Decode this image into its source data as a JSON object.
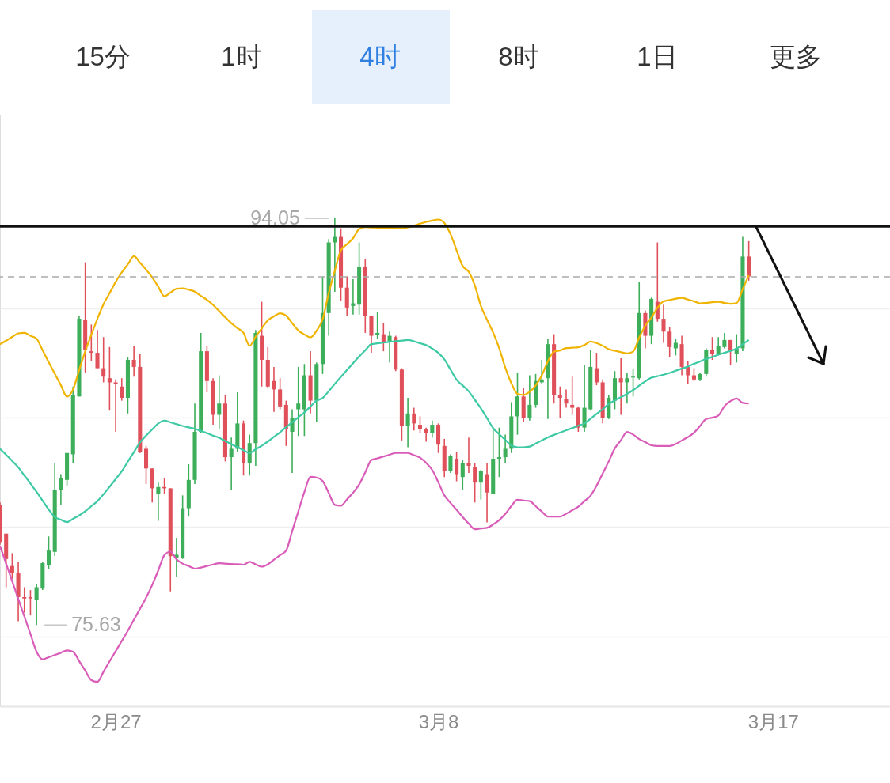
{
  "chart_data": {
    "type": "candlestick",
    "annotations": [
      "15分",
      "1时",
      "4时",
      "8时",
      "1日",
      "更多",
      "94.05",
      "75.63"
    ],
    "categories": [
      null,
      null,
      null,
      null,
      null,
      null,
      null,
      null,
      null,
      null,
      null,
      null,
      null,
      null,
      null,
      null,
      null,
      null,
      null,
      "2月27",
      null,
      null,
      null,
      null,
      null,
      null,
      null,
      null,
      null,
      null,
      null,
      null,
      null,
      null,
      null,
      null,
      null,
      null,
      null,
      null,
      null,
      null,
      null,
      null,
      null,
      null,
      null,
      null,
      null,
      null,
      null,
      null,
      null,
      null,
      null,
      null,
      null,
      null,
      null,
      null,
      null,
      null,
      null,
      null,
      null,
      null,
      null,
      null,
      null,
      null,
      null,
      null,
      "3月8",
      null,
      null,
      null,
      null,
      null,
      null,
      null,
      null,
      null,
      null,
      null,
      null,
      null,
      null,
      null,
      null,
      null,
      null,
      null,
      null,
      null,
      null,
      null,
      null,
      null,
      null,
      null,
      null,
      null,
      null,
      null,
      null,
      null,
      null,
      null,
      null,
      null,
      null,
      null,
      null,
      null,
      null,
      null,
      null,
      null,
      null,
      null,
      null,
      null,
      null,
      null,
      null,
      null,
      null,
      "3月17",
      null,
      null,
      null,
      null,
      null,
      null,
      null,
      null,
      null,
      null,
      null,
      null,
      null,
      null,
      null,
      null,
      null,
      null,
      null
    ],
    "ohlc": [
      [
        81.05,
        81.18,
        79.26,
        79.39
      ],
      [
        79.77,
        79.77,
        77.34,
        78.62
      ],
      [
        78.3,
        78.88,
        77.72,
        77.98
      ],
      [
        77.98,
        78.49,
        75.8,
        76.89
      ],
      [
        76.89,
        77.34,
        76.19,
        76.83
      ],
      [
        76.89,
        77.21,
        76.06,
        76.83
      ],
      [
        76.76,
        77.47,
        75.63,
        77.34
      ],
      [
        77.28,
        78.49,
        77.21,
        78.43
      ],
      [
        78.36,
        79.64,
        78.17,
        79.0
      ],
      [
        78.94,
        82.97,
        78.75,
        81.76
      ],
      [
        81.76,
        82.46,
        81.05,
        82.27
      ],
      [
        82.2,
        83.42,
        81.95,
        83.42
      ],
      [
        83.36,
        86.43,
        82.97,
        86.04
      ],
      [
        85.98,
        89.63,
        85.98,
        89.5
      ],
      [
        89.44,
        92.06,
        87.07,
        88.09
      ],
      [
        88.03,
        89.24,
        87.58,
        87.96
      ],
      [
        87.96,
        88.99,
        87.26,
        87.26
      ],
      [
        87.26,
        88.67,
        86.62,
        86.88
      ],
      [
        86.81,
        88.22,
        85.34,
        86.62
      ],
      [
        86.62,
        86.75,
        84.38,
        86.56
      ],
      [
        86.43,
        86.81,
        85.79,
        85.92
      ],
      [
        85.92,
        87.77,
        85.21,
        87.64
      ],
      [
        87.64,
        88.28,
        86.88,
        87.32
      ],
      [
        87.32,
        87.9,
        83.42,
        83.48
      ],
      [
        83.61,
        83.74,
        82.01,
        82.72
      ],
      [
        82.72,
        82.72,
        81.18,
        81.82
      ],
      [
        81.56,
        82.08,
        80.35,
        81.88
      ],
      [
        81.88,
        82.27,
        81.56,
        81.82
      ],
      [
        81.82,
        81.82,
        77.15,
        78.75
      ],
      [
        78.68,
        79.58,
        77.79,
        78.81
      ],
      [
        78.68,
        81.5,
        78.62,
        80.92
      ],
      [
        80.92,
        82.91,
        80.54,
        82.2
      ],
      [
        82.2,
        85.66,
        82.01,
        84.38
      ],
      [
        84.38,
        88.86,
        84.32,
        88.03
      ],
      [
        88.03,
        88.28,
        86.17,
        86.68
      ],
      [
        86.68,
        86.81,
        84.7,
        85.15
      ],
      [
        85.15,
        86.94,
        84.51,
        85.66
      ],
      [
        85.66,
        86.04,
        83.04,
        83.23
      ],
      [
        83.23,
        84.12,
        81.76,
        83.61
      ],
      [
        83.61,
        86.17,
        83.48,
        84.76
      ],
      [
        84.76,
        84.89,
        82.4,
        82.97
      ],
      [
        82.97,
        84.25,
        82.4,
        83.87
      ],
      [
        83.87,
        88.99,
        82.84,
        88.86
      ],
      [
        88.73,
        90.27,
        86.43,
        87.64
      ],
      [
        87.64,
        88.22,
        86.36,
        86.43
      ],
      [
        86.68,
        87.32,
        85.28,
        86.3
      ],
      [
        86.3,
        86.81,
        85.4,
        85.53
      ],
      [
        85.6,
        85.79,
        83.74,
        84.51
      ],
      [
        84.38,
        85.4,
        82.52,
        85.02
      ],
      [
        85.4,
        87.32,
        84.19,
        85.66
      ],
      [
        85.4,
        87.45,
        84.19,
        86.94
      ],
      [
        86.94,
        88.03,
        85.21,
        85.79
      ],
      [
        85.79,
        87.52,
        84.83,
        87.45
      ],
      [
        87.45,
        91.42,
        87.0,
        89.76
      ],
      [
        89.76,
        93.11,
        88.73,
        92.96
      ],
      [
        92.96,
        94.05,
        90.72,
        93.21
      ],
      [
        93.21,
        93.6,
        90.33,
        90.91
      ],
      [
        90.91,
        91.42,
        89.63,
        90.01
      ],
      [
        90.08,
        91.29,
        89.69,
        90.2
      ],
      [
        90.14,
        92.96,
        89.69,
        91.87
      ],
      [
        91.87,
        92.19,
        88.86,
        89.63
      ],
      [
        89.63,
        89.63,
        87.96,
        88.73
      ],
      [
        88.76,
        89.82,
        88.6,
        88.86
      ],
      [
        88.8,
        89.31,
        88.03,
        88.41
      ],
      [
        88.48,
        88.92,
        87.52,
        88.73
      ],
      [
        88.67,
        88.73,
        87.13,
        87.2
      ],
      [
        87.2,
        87.26,
        83.99,
        84.64
      ],
      [
        84.64,
        85.92,
        83.68,
        85.21
      ],
      [
        85.21,
        85.47,
        84.44,
        84.76
      ],
      [
        84.7,
        85.08,
        84.32,
        84.51
      ],
      [
        84.51,
        84.57,
        83.93,
        84.32
      ],
      [
        84.32,
        84.89,
        84.12,
        84.7
      ],
      [
        84.7,
        84.76,
        83.42,
        83.8
      ],
      [
        83.74,
        84.06,
        82.33,
        82.59
      ],
      [
        82.59,
        83.36,
        82.52,
        83.29
      ],
      [
        83.16,
        83.48,
        82.14,
        82.46
      ],
      [
        82.33,
        83.1,
        81.76,
        82.97
      ],
      [
        82.97,
        84.12,
        82.52,
        82.84
      ],
      [
        82.78,
        82.97,
        81.18,
        82.08
      ],
      [
        82.08,
        82.65,
        81.31,
        82.59
      ],
      [
        82.46,
        82.97,
        80.28,
        81.63
      ],
      [
        81.56,
        84.51,
        81.56,
        83.16
      ],
      [
        83.16,
        84.57,
        82.33,
        83.23
      ],
      [
        83.23,
        84.25,
        82.97,
        83.61
      ],
      [
        83.61,
        85.72,
        83.42,
        85.08
      ],
      [
        85.08,
        87.07,
        84.25,
        85.98
      ],
      [
        85.98,
        86.36,
        84.83,
        85.02
      ],
      [
        85.02,
        86.94,
        84.89,
        85.6
      ],
      [
        85.6,
        87.0,
        85.47,
        86.68
      ],
      [
        86.62,
        87.64,
        86.56,
        86.75
      ],
      [
        86.81,
        88.6,
        84.96,
        88.35
      ],
      [
        88.35,
        88.8,
        85.66,
        86.04
      ],
      [
        86.04,
        86.43,
        85.02,
        85.92
      ],
      [
        85.85,
        86.3,
        85.47,
        85.66
      ],
      [
        85.6,
        86.88,
        85.15,
        85.47
      ],
      [
        85.47,
        85.53,
        84.38,
        84.57
      ],
      [
        84.57,
        87.39,
        84.38,
        85.47
      ],
      [
        85.4,
        88.09,
        85.34,
        87.32
      ],
      [
        87.26,
        87.96,
        86.49,
        86.62
      ],
      [
        86.62,
        86.75,
        84.76,
        85.02
      ],
      [
        85.02,
        86.04,
        84.96,
        85.92
      ],
      [
        85.79,
        87.13,
        85.4,
        86.81
      ],
      [
        86.81,
        87.71,
        85.15,
        86.62
      ],
      [
        86.62,
        87.07,
        85.66,
        86.81
      ],
      [
        86.84,
        87.22,
        85.98,
        86.88
      ],
      [
        86.81,
        91.16,
        86.75,
        89.76
      ],
      [
        89.76,
        89.88,
        88.16,
        88.73
      ],
      [
        88.73,
        90.46,
        88.35,
        90.4
      ],
      [
        90.27,
        92.96,
        89.37,
        89.5
      ],
      [
        89.5,
        90.14,
        88.41,
        88.92
      ],
      [
        88.92,
        89.12,
        87.77,
        88.22
      ],
      [
        88.16,
        88.6,
        87.84,
        88.41
      ],
      [
        88.35,
        88.73,
        86.94,
        87.32
      ],
      [
        87.32,
        87.58,
        86.56,
        86.94
      ],
      [
        86.94,
        87.26,
        86.68,
        86.75
      ],
      [
        86.75,
        87.07,
        86.68,
        87.0
      ],
      [
        87.0,
        88.16,
        86.88,
        88.09
      ],
      [
        88.09,
        88.67,
        87.64,
        87.9
      ],
      [
        87.9,
        88.67,
        87.84,
        88.28
      ],
      [
        88.22,
        88.86,
        88.16,
        88.54
      ],
      [
        88.54,
        88.54,
        87.39,
        88.03
      ],
      [
        87.9,
        88.8,
        87.52,
        88.16
      ],
      [
        88.16,
        93.21,
        88.03,
        92.32
      ],
      [
        92.32,
        93.02,
        91.23,
        91.42
      ],
      null,
      null,
      null,
      null,
      null,
      null,
      null,
      null,
      null,
      null,
      null,
      null,
      null,
      null,
      null,
      null,
      null,
      null,
      null,
      null,
      null,
      null,
      null
    ],
    "colors": [
      "#e0505a",
      "#e0505a",
      "#e0505a",
      "#e0505a",
      "#e0505a",
      "#e0505a",
      "#3dae5a",
      "#3dae5a",
      "#3dae5a",
      "#3dae5a",
      "#3dae5a",
      "#3dae5a",
      "#3dae5a",
      "#3dae5a",
      "#e0505a",
      "#e0505a",
      "#e0505a",
      "#e0505a",
      "#e0505a",
      "#e0505a",
      "#e0505a",
      "#3dae5a",
      "#e0505a",
      "#e0505a",
      "#e0505a",
      "#e0505a",
      "#3dae5a",
      "#e0505a",
      "#e0505a",
      "#3dae5a",
      "#3dae5a",
      "#3dae5a",
      "#3dae5a",
      "#3dae5a",
      "#e0505a",
      "#e0505a",
      "#3dae5a",
      "#e0505a",
      "#3dae5a",
      "#3dae5a",
      "#e0505a",
      "#3dae5a",
      "#3dae5a",
      "#e0505a",
      "#e0505a",
      "#e0505a",
      "#e0505a",
      "#e0505a",
      "#3dae5a",
      "#3dae5a",
      "#3dae5a",
      "#e0505a",
      "#3dae5a",
      "#3dae5a",
      "#3dae5a",
      "#3dae5a",
      "#e0505a",
      "#e0505a",
      "#3dae5a",
      "#3dae5a",
      "#e0505a",
      "#e0505a",
      "#3dae5a",
      "#e0505a",
      "#3dae5a",
      "#e0505a",
      "#e0505a",
      "#3dae5a",
      "#e0505a",
      "#e0505a",
      "#e0505a",
      "#3dae5a",
      "#e0505a",
      "#e0505a",
      "#3dae5a",
      "#e0505a",
      "#3dae5a",
      "#e0505a",
      "#e0505a",
      "#3dae5a",
      "#e0505a",
      "#3dae5a",
      "#3dae5a",
      "#3dae5a",
      "#3dae5a",
      "#3dae5a",
      "#e0505a",
      "#3dae5a",
      "#3dae5a",
      "#3dae5a",
      "#3dae5a",
      "#e0505a",
      "#e0505a",
      "#e0505a",
      "#e0505a",
      "#e0505a",
      "#3dae5a",
      "#3dae5a",
      "#e0505a",
      "#e0505a",
      "#3dae5a",
      "#3dae5a",
      "#e0505a",
      "#3dae5a",
      "#3dae5a",
      "#3dae5a",
      "#e0505a",
      "#3dae5a",
      "#e0505a",
      "#e0505a",
      "#e0505a",
      "#3dae5a",
      "#e0505a",
      "#e0505a",
      "#e0505a",
      "#3dae5a",
      "#3dae5a",
      "#e0505a",
      "#3dae5a",
      "#3dae5a",
      "#e0505a",
      "#3dae5a",
      "#3dae5a",
      "#e0505a",
      null,
      null,
      null,
      null,
      null,
      null,
      null,
      null,
      null,
      null,
      null,
      null,
      null,
      null,
      null,
      null,
      null,
      null,
      null,
      null,
      null,
      null,
      null
    ],
    "series": [
      {
        "type": "line",
        "color": "#f0b400",
        "values": [
          88.35,
          88.51,
          88.68,
          88.84,
          88.86,
          88.73,
          88.6,
          88.07,
          87.53,
          87.01,
          86.49,
          85.97,
          86.3,
          87.17,
          88.03,
          88.77,
          89.5,
          90.16,
          90.66,
          91.17,
          91.6,
          91.97,
          92.34,
          92.04,
          91.73,
          91.38,
          90.95,
          90.52,
          90.69,
          90.86,
          90.88,
          90.82,
          90.73,
          90.54,
          90.36,
          90.13,
          89.85,
          89.57,
          89.3,
          89.08,
          88.86,
          88.28,
          88.69,
          89.07,
          89.43,
          89.61,
          89.75,
          89.64,
          89.3,
          88.97,
          88.79,
          88.66,
          88.96,
          89.48,
          90.66,
          91.68,
          92.6,
          92.88,
          93.15,
          93.57,
          93.65,
          93.64,
          93.63,
          93.62,
          93.62,
          93.61,
          93.6,
          93.64,
          93.72,
          93.81,
          93.89,
          93.95,
          94.0,
          93.84,
          93.34,
          92.61,
          91.89,
          91.63,
          91.01,
          90.08,
          89.46,
          88.88,
          88.17,
          87.29,
          86.58,
          86.1,
          86.05,
          86.19,
          86.48,
          86.94,
          87.58,
          88.01,
          88.06,
          88.17,
          88.19,
          88.21,
          88.31,
          88.47,
          88.4,
          88.28,
          88.12,
          88.05,
          87.99,
          87.93,
          88.01,
          88.65,
          89.19,
          89.55,
          90.0,
          90.29,
          90.35,
          90.41,
          90.45,
          90.37,
          90.29,
          90.2,
          90.22,
          90.25,
          90.27,
          90.22,
          90.18,
          90.21,
          90.84,
          91.48,
          null,
          null,
          null,
          null,
          null,
          null,
          null,
          null,
          null,
          null,
          null,
          null,
          null,
          null,
          null,
          null,
          null,
          null,
          null,
          null,
          null,
          null,
          null
        ]
      },
      {
        "type": "line",
        "color": "#3cc9a4",
        "values": [
          83.61,
          83.34,
          83.06,
          82.77,
          82.4,
          82.04,
          81.66,
          81.26,
          80.86,
          80.52,
          80.4,
          80.29,
          80.44,
          80.59,
          80.78,
          81.01,
          81.24,
          81.55,
          81.89,
          82.24,
          82.59,
          83.03,
          83.46,
          83.9,
          84.21,
          84.49,
          84.76,
          84.89,
          84.81,
          84.73,
          84.65,
          84.58,
          84.52,
          84.42,
          84.32,
          84.21,
          84.11,
          83.97,
          83.82,
          83.69,
          83.55,
          83.42,
          83.59,
          83.75,
          83.94,
          84.15,
          84.36,
          84.59,
          84.81,
          85.04,
          85.25,
          85.53,
          85.79,
          85.91,
          86.22,
          86.55,
          86.87,
          87.18,
          87.49,
          87.79,
          88.07,
          88.35,
          88.39,
          88.42,
          88.46,
          88.49,
          88.51,
          88.54,
          88.48,
          88.39,
          88.31,
          88.15,
          87.96,
          87.66,
          87.2,
          86.74,
          86.48,
          86.21,
          85.83,
          85.44,
          85.0,
          84.55,
          84.27,
          84.02,
          83.76,
          83.68,
          83.68,
          83.71,
          83.85,
          83.99,
          84.13,
          84.24,
          84.34,
          84.45,
          84.55,
          84.66,
          84.76,
          84.97,
          85.19,
          85.4,
          85.64,
          85.8,
          85.95,
          86.1,
          86.27,
          86.47,
          86.67,
          86.83,
          86.9,
          86.97,
          87.05,
          87.15,
          87.24,
          87.34,
          87.46,
          87.57,
          87.68,
          87.77,
          87.87,
          87.96,
          88.04,
          88.15,
          88.35,
          88.54,
          null,
          null,
          null,
          null,
          null,
          null,
          null,
          null,
          null,
          null,
          null,
          null,
          null,
          null,
          null,
          null,
          null,
          null,
          null,
          null,
          null,
          null,
          null
        ]
      },
      {
        "type": "line",
        "color": "#d85cb8",
        "values": [
          79.21,
          78.41,
          77.61,
          76.81,
          76.02,
          75.22,
          74.42,
          74.07,
          74.17,
          74.27,
          74.37,
          74.48,
          74.42,
          73.99,
          73.56,
          73.13,
          73.05,
          73.51,
          73.98,
          74.44,
          74.9,
          75.37,
          75.87,
          76.36,
          76.86,
          77.44,
          78.1,
          78.79,
          78.95,
          78.6,
          78.41,
          78.3,
          78.18,
          78.23,
          78.3,
          78.37,
          78.43,
          78.41,
          78.39,
          78.38,
          78.36,
          78.49,
          78.38,
          78.27,
          78.38,
          78.59,
          78.79,
          79.0,
          79.88,
          80.77,
          81.65,
          82.34,
          82.31,
          82.15,
          81.61,
          81.07,
          81.03,
          81.32,
          81.62,
          81.99,
          82.54,
          83.1,
          83.18,
          83.26,
          83.34,
          83.42,
          83.42,
          83.42,
          83.32,
          83.21,
          82.97,
          82.65,
          82.1,
          81.5,
          81.16,
          80.85,
          80.52,
          80.22,
          79.97,
          80.0,
          80.03,
          80.18,
          80.38,
          80.66,
          81.02,
          81.3,
          81.27,
          81.24,
          81.01,
          80.77,
          80.54,
          80.54,
          80.54,
          80.67,
          80.83,
          80.99,
          81.24,
          81.48,
          81.94,
          82.49,
          83.04,
          83.63,
          84.0,
          84.38,
          84.26,
          84.05,
          83.91,
          83.77,
          83.74,
          83.74,
          83.74,
          83.83,
          83.99,
          84.14,
          84.34,
          84.65,
          84.96,
          85.02,
          85.12,
          85.54,
          85.77,
          85.89,
          85.69,
          85.66,
          null,
          null,
          null,
          null,
          null,
          null,
          null,
          null,
          null,
          null,
          null,
          null,
          null,
          null,
          null,
          null,
          null,
          null,
          null,
          null,
          null,
          null,
          null
        ]
      }
    ],
    "yticks": [
      {
        "value": 89.96,
        "label": null
      },
      {
        "value": 85.02,
        "label": null
      },
      {
        "value": 80.07,
        "label": null
      },
      {
        "value": 75.09,
        "label": null
      }
    ],
    "grid": "y",
    "tick_labels": "x",
    "ref_lines": [
      {
        "axis": "y",
        "value": 93.69,
        "color": "#111111",
        "line_style": "solid"
      },
      {
        "axis": "y",
        "value": 91.4,
        "color": "#aaaaaa",
        "line_style": "dashed"
      }
    ]
  }
}
